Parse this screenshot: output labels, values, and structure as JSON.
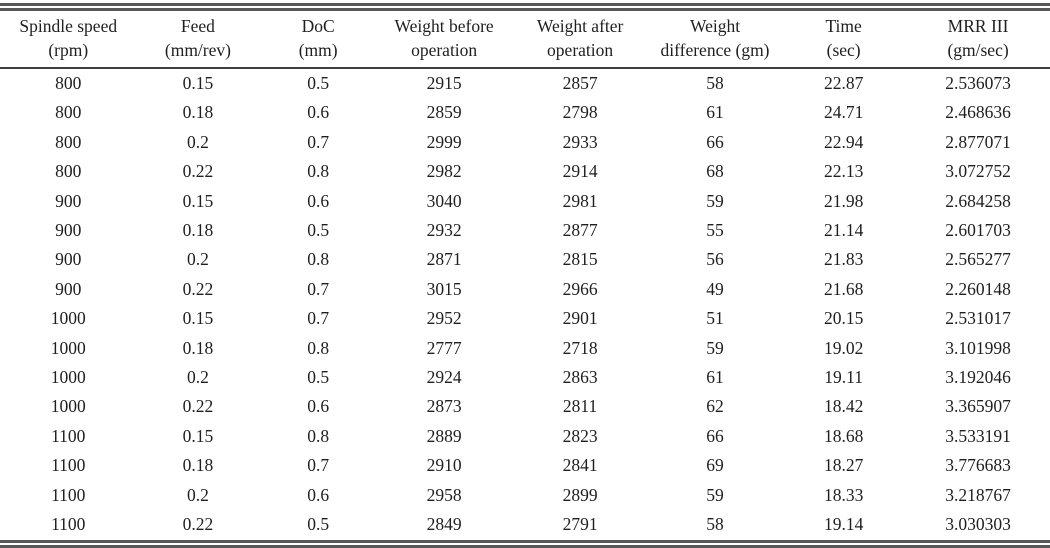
{
  "table": {
    "columns": [
      {
        "line1": "Spindle speed",
        "line2": "(rpm)"
      },
      {
        "line1": "Feed",
        "line2": "(mm/rev)"
      },
      {
        "line1": "DoC",
        "line2": "(mm)"
      },
      {
        "line1": "Weight before",
        "line2": "operation"
      },
      {
        "line1": "Weight after",
        "line2": "operation"
      },
      {
        "line1": "Weight",
        "line2": "difference (gm)"
      },
      {
        "line1": "Time",
        "line2": "(sec)"
      },
      {
        "line1": "MRR III",
        "line2": "(gm/sec)"
      }
    ],
    "col_widths_pct": [
      13.0,
      11.7,
      11.2,
      12.8,
      13.1,
      12.6,
      11.9,
      13.7
    ],
    "rows": [
      [
        "800",
        "0.15",
        "0.5",
        "2915",
        "2857",
        "58",
        "22.87",
        "2.536073"
      ],
      [
        "800",
        "0.18",
        "0.6",
        "2859",
        "2798",
        "61",
        "24.71",
        "2.468636"
      ],
      [
        "800",
        "0.2",
        "0.7",
        "2999",
        "2933",
        "66",
        "22.94",
        "2.877071"
      ],
      [
        "800",
        "0.22",
        "0.8",
        "2982",
        "2914",
        "68",
        "22.13",
        "3.072752"
      ],
      [
        "900",
        "0.15",
        "0.6",
        "3040",
        "2981",
        "59",
        "21.98",
        "2.684258"
      ],
      [
        "900",
        "0.18",
        "0.5",
        "2932",
        "2877",
        "55",
        "21.14",
        "2.601703"
      ],
      [
        "900",
        "0.2",
        "0.8",
        "2871",
        "2815",
        "56",
        "21.83",
        "2.565277"
      ],
      [
        "900",
        "0.22",
        "0.7",
        "3015",
        "2966",
        "49",
        "21.68",
        "2.260148"
      ],
      [
        "1000",
        "0.15",
        "0.7",
        "2952",
        "2901",
        "51",
        "20.15",
        "2.531017"
      ],
      [
        "1000",
        "0.18",
        "0.8",
        "2777",
        "2718",
        "59",
        "19.02",
        "3.101998"
      ],
      [
        "1000",
        "0.2",
        "0.5",
        "2924",
        "2863",
        "61",
        "19.11",
        "3.192046"
      ],
      [
        "1000",
        "0.22",
        "0.6",
        "2873",
        "2811",
        "62",
        "18.42",
        "3.365907"
      ],
      [
        "1100",
        "0.15",
        "0.8",
        "2889",
        "2823",
        "66",
        "18.68",
        "3.533191"
      ],
      [
        "1100",
        "0.18",
        "0.7",
        "2910",
        "2841",
        "69",
        "18.27",
        "3.776683"
      ],
      [
        "1100",
        "0.2",
        "0.6",
        "2958",
        "2899",
        "59",
        "18.33",
        "3.218767"
      ],
      [
        "1100",
        "0.22",
        "0.5",
        "2849",
        "2791",
        "58",
        "19.14",
        "3.030303"
      ]
    ]
  },
  "colors": {
    "text": "#1f1f1f",
    "rule": "#575757",
    "header_rule": "#3d3d3d",
    "background": "#ffffff"
  }
}
